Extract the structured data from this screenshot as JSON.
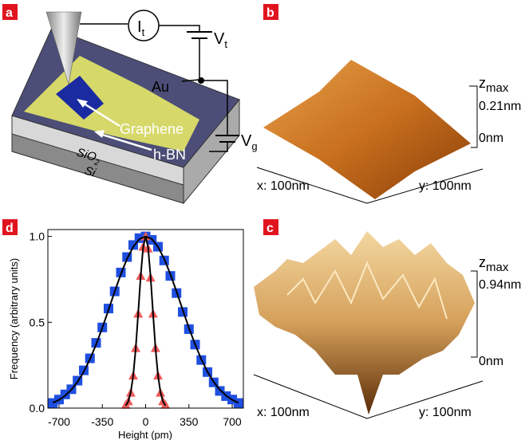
{
  "panel_labels": [
    "a",
    "b",
    "c",
    "d"
  ],
  "schematic": {
    "current": {
      "main": "I",
      "sub": "t"
    },
    "tip_voltage": {
      "main": "V",
      "sub": "t"
    },
    "gate_voltage": {
      "main": "V",
      "sub": "g"
    },
    "electrode": "Au",
    "graphene": "Graphene",
    "hbn": "h-BN",
    "oxide": {
      "main": "SiO",
      "sub": "2"
    },
    "substrate": "Si"
  },
  "topography_b": {
    "zlabel": {
      "main": "z",
      "sub": "max"
    },
    "zmax": "0.21nm",
    "zmin": "0nm",
    "xlabel": "x: 100nm",
    "ylabel": "y: 100nm"
  },
  "topography_c": {
    "zlabel": {
      "main": "z",
      "sub": "max"
    },
    "zmax": "0.94nm",
    "zmin": "0nm",
    "xlabel": "x: 100nm",
    "ylabel": "y: 100nm"
  },
  "chart_data": {
    "type": "scatter",
    "xlabel": "Height (pm)",
    "ylabel": "Frequency (arbitrary units)",
    "xlim": [
      -790,
      790
    ],
    "ylim": [
      0,
      1.04
    ],
    "xticks": [
      -700,
      -350,
      0,
      350,
      700
    ],
    "yticks": [
      {
        "value": 0,
        "label": "0.0"
      },
      0.5,
      {
        "value": 1,
        "label": "1.0"
      }
    ],
    "series": [
      {
        "marker": "square",
        "color": "#1f4fe0",
        "x": [
          -750,
          -700,
          -650,
          -600,
          -550,
          -500,
          -450,
          -400,
          -350,
          -300,
          -250,
          -200,
          -150,
          -100,
          -50,
          0,
          50,
          100,
          150,
          200,
          250,
          300,
          350,
          400,
          450,
          500,
          550,
          600,
          650,
          700,
          750
        ],
        "values": [
          0.03,
          0.05,
          0.08,
          0.11,
          0.16,
          0.22,
          0.29,
          0.38,
          0.47,
          0.58,
          0.68,
          0.79,
          0.88,
          0.95,
          0.99,
          1.0,
          0.98,
          0.94,
          0.86,
          0.77,
          0.67,
          0.56,
          0.46,
          0.37,
          0.28,
          0.21,
          0.15,
          0.1,
          0.07,
          0.05,
          0.03
        ]
      },
      {
        "marker": "triangle",
        "color": "#f05a5a",
        "x": [
          -160,
          -140,
          -120,
          -100,
          -80,
          -60,
          -40,
          -20,
          0,
          20,
          40,
          60,
          80,
          100,
          120,
          140,
          160
        ],
        "values": [
          0.02,
          0.04,
          0.09,
          0.19,
          0.35,
          0.55,
          0.77,
          0.94,
          1.0,
          0.93,
          0.76,
          0.55,
          0.35,
          0.19,
          0.09,
          0.04,
          0.02
        ]
      },
      {
        "marker": "line",
        "color": "#000000",
        "x": [
          -750,
          -700,
          -650,
          -600,
          -550,
          -500,
          -450,
          -400,
          -350,
          -300,
          -250,
          -200,
          -150,
          -100,
          -50,
          0,
          50,
          100,
          150,
          200,
          250,
          300,
          350,
          400,
          450,
          500,
          550,
          600,
          650,
          700,
          750
        ],
        "values": [
          0.031,
          0.048,
          0.073,
          0.107,
          0.153,
          0.212,
          0.285,
          0.371,
          0.468,
          0.572,
          0.679,
          0.78,
          0.87,
          0.94,
          0.985,
          1,
          0.985,
          0.94,
          0.87,
          0.78,
          0.679,
          0.572,
          0.468,
          0.371,
          0.285,
          0.212,
          0.153,
          0.107,
          0.073,
          0.048,
          0.031
        ]
      },
      {
        "marker": "line",
        "color": "#000000",
        "x": [
          -160,
          -140,
          -120,
          -100,
          -80,
          -60,
          -40,
          -20,
          0,
          20,
          40,
          60,
          80,
          100,
          120,
          140,
          160
        ],
        "values": [
          0.015,
          0.039,
          0.093,
          0.191,
          0.347,
          0.552,
          0.768,
          0.936,
          1,
          0.936,
          0.768,
          0.552,
          0.347,
          0.191,
          0.093,
          0.039,
          0.015
        ]
      }
    ]
  }
}
